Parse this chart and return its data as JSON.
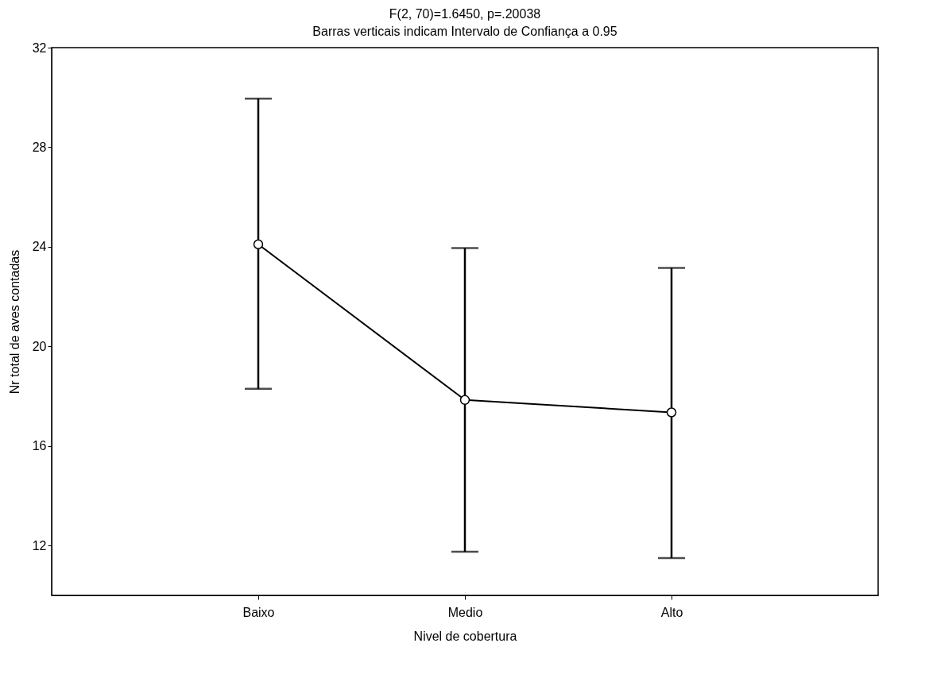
{
  "chart_data": {
    "type": "line",
    "title": "F(2, 70)=1.6450, p=.20038",
    "subtitle": "Barras verticais indicam Intervalo de Confiança a 0.95",
    "xlabel": "Nivel de cobertura",
    "ylabel": "Nr total de aves contadas",
    "categories": [
      "Baixo",
      "Medio",
      "Alto"
    ],
    "series": [
      {
        "color": "#000000",
        "values": [
          24.1,
          17.85,
          17.35
        ],
        "errors": [
          [
            18.3,
            29.95
          ],
          [
            11.75,
            23.95
          ],
          [
            11.5,
            23.15
          ]
        ]
      }
    ],
    "ylim": [
      10,
      32
    ],
    "yticks": [
      12,
      16,
      20,
      24,
      28,
      32
    ],
    "grid": false,
    "marker": "circle",
    "line_style": "solid"
  }
}
